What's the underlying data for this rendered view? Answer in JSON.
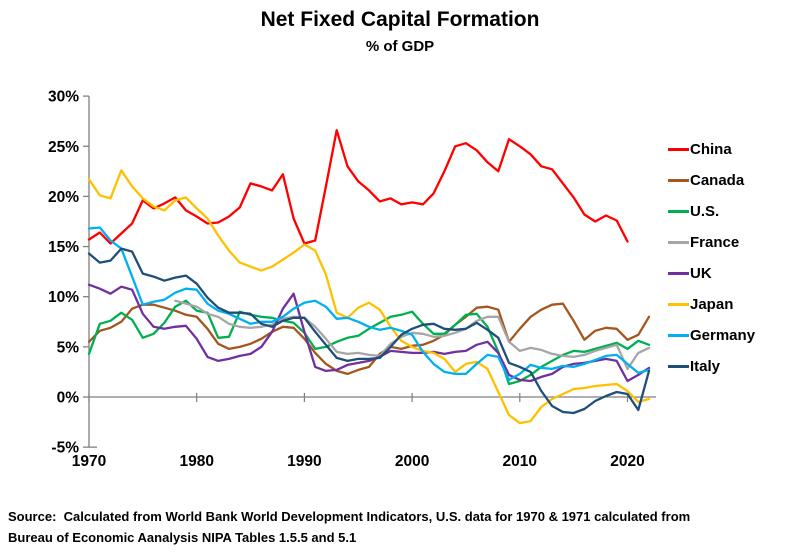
{
  "title": "Net Fixed Capital Formation",
  "subtitle": "% of GDP",
  "source": {
    "line1": "Source:  Calculated from World Bank World Development Indicators, U.S. data for 1970 & 1971 calculated from",
    "line2": "Bureau of Economic Aanalysis NIPA Tables 1.5.5 and 5.1"
  },
  "colors": {
    "axis": "#808080",
    "zero_line": "#7f7f7f",
    "text": "#000000"
  },
  "chart_data": {
    "type": "line",
    "title": "Net Fixed Capital Formation",
    "subtitle": "% of GDP",
    "xlabel": "",
    "ylabel": "% of GDP",
    "x_start_year": 1970,
    "x_end_year": 2022,
    "x_ticks": [
      1970,
      1980,
      1990,
      2000,
      2010,
      2020
    ],
    "y_ticks": [
      30,
      25,
      20,
      15,
      10,
      5,
      0,
      -5
    ],
    "y_tick_suffix": "%",
    "ylim": [
      -5,
      30
    ],
    "grid": "zero-line-only",
    "legend_position": "right",
    "series": [
      {
        "name": "China",
        "color": "#FF0000",
        "values": [
          15.7,
          16.4,
          15.3,
          16.3,
          17.3,
          19.6,
          18.8,
          19.3,
          19.9,
          18.6,
          18.0,
          17.3,
          17.4,
          18.0,
          18.9,
          21.3,
          21.0,
          20.6,
          22.2,
          17.8,
          15.3,
          15.6,
          21.0,
          26.6,
          23.0,
          21.5,
          20.6,
          19.5,
          19.8,
          19.2,
          19.4,
          19.2,
          20.3,
          22.5,
          25.0,
          25.3,
          24.6,
          23.4,
          22.5,
          25.7,
          25.0,
          24.2,
          23.0,
          22.7,
          21.3,
          19.9,
          18.2,
          17.5,
          18.1,
          17.6,
          15.5,
          null,
          null
        ]
      },
      {
        "name": "Canada",
        "color": "#A4561E",
        "values": [
          5.5,
          6.6,
          6.9,
          7.5,
          8.8,
          9.2,
          9.2,
          8.9,
          8.6,
          8.2,
          8.0,
          6.8,
          5.3,
          4.8,
          5.0,
          5.3,
          5.8,
          6.5,
          7.0,
          6.9,
          5.8,
          4.4,
          3.3,
          2.6,
          2.3,
          2.7,
          3.0,
          4.3,
          5.0,
          4.8,
          5.1,
          5.2,
          5.6,
          6.2,
          7.2,
          8.0,
          8.9,
          9.0,
          8.7,
          5.5,
          6.8,
          8.0,
          8.7,
          9.2,
          9.3,
          7.6,
          5.7,
          6.6,
          6.9,
          6.8,
          5.7,
          6.2,
          8.0
        ]
      },
      {
        "name": "U.S.",
        "color": "#00B050",
        "values": [
          4.3,
          7.3,
          7.6,
          8.4,
          7.7,
          5.9,
          6.3,
          7.4,
          9.0,
          9.6,
          8.6,
          8.4,
          5.9,
          6.0,
          8.5,
          8.2,
          8.0,
          7.9,
          7.6,
          7.4,
          6.4,
          4.8,
          5.0,
          5.5,
          5.9,
          6.1,
          6.8,
          7.4,
          8.0,
          8.2,
          8.5,
          7.3,
          6.3,
          6.3,
          7.2,
          8.2,
          8.3,
          7.0,
          4.5,
          1.3,
          1.6,
          2.2,
          3.0,
          3.6,
          4.2,
          4.6,
          4.5,
          4.8,
          5.1,
          5.4,
          4.8,
          5.6,
          5.2
        ]
      },
      {
        "name": "France",
        "color": "#A6A6A6",
        "values": [
          null,
          null,
          null,
          null,
          null,
          null,
          null,
          null,
          9.6,
          9.3,
          9.0,
          8.3,
          8.0,
          7.3,
          7.0,
          6.9,
          7.0,
          7.2,
          7.8,
          8.0,
          7.9,
          7.0,
          5.8,
          4.5,
          4.3,
          4.4,
          4.2,
          4.1,
          5.3,
          6.0,
          6.4,
          6.3,
          6.0,
          6.1,
          6.4,
          6.8,
          7.6,
          8.0,
          8.0,
          5.5,
          4.6,
          4.9,
          4.7,
          4.3,
          4.1,
          4.0,
          4.2,
          4.6,
          4.9,
          5.2,
          2.8,
          4.4,
          4.9
        ]
      },
      {
        "name": "UK",
        "color": "#7030A0",
        "values": [
          11.2,
          10.8,
          10.3,
          11.0,
          10.7,
          8.3,
          7.0,
          6.8,
          7.0,
          7.1,
          5.8,
          4.0,
          3.6,
          3.8,
          4.1,
          4.3,
          5.0,
          6.5,
          8.8,
          10.3,
          6.5,
          3.0,
          2.6,
          2.7,
          3.2,
          3.4,
          3.6,
          4.0,
          4.6,
          4.5,
          4.4,
          4.4,
          4.5,
          4.3,
          4.5,
          4.6,
          5.2,
          5.5,
          4.4,
          2.2,
          1.7,
          1.6,
          2.0,
          2.3,
          3.0,
          3.3,
          3.4,
          3.6,
          3.8,
          3.6,
          1.6,
          2.2,
          2.9
        ]
      },
      {
        "name": "Japan",
        "color": "#FFC000",
        "values": [
          21.7,
          20.1,
          19.8,
          22.6,
          21.0,
          19.8,
          19.0,
          18.6,
          19.6,
          19.9,
          18.8,
          17.8,
          16.1,
          14.6,
          13.4,
          13.0,
          12.6,
          13.0,
          13.7,
          14.4,
          15.2,
          14.6,
          12.2,
          8.4,
          7.9,
          8.9,
          9.4,
          8.7,
          7.0,
          5.6,
          5.0,
          4.6,
          4.4,
          3.8,
          2.5,
          3.3,
          3.5,
          2.8,
          0.5,
          -1.8,
          -2.6,
          -2.4,
          -1.0,
          -0.2,
          0.3,
          0.8,
          0.9,
          1.1,
          1.2,
          1.3,
          0.6,
          -0.5,
          -0.2
        ]
      },
      {
        "name": "Germany",
        "color": "#00B0F0",
        "values": [
          16.8,
          16.9,
          15.6,
          14.8,
          12.0,
          9.2,
          9.5,
          9.7,
          10.4,
          10.8,
          10.7,
          9.3,
          8.6,
          8.3,
          7.8,
          7.3,
          7.5,
          7.5,
          8.0,
          8.8,
          9.4,
          9.6,
          9.0,
          7.8,
          7.9,
          7.5,
          7.0,
          6.7,
          6.9,
          6.6,
          6.2,
          4.5,
          3.3,
          2.5,
          2.3,
          2.3,
          3.3,
          4.2,
          4.0,
          1.7,
          2.3,
          3.2,
          2.9,
          2.8,
          3.1,
          3.0,
          3.3,
          3.7,
          4.1,
          4.2,
          3.3,
          2.4,
          2.7
        ]
      },
      {
        "name": "Italy",
        "color": "#1F4E79",
        "values": [
          14.3,
          13.4,
          13.6,
          14.8,
          14.5,
          12.3,
          12.0,
          11.6,
          11.9,
          12.1,
          11.3,
          9.9,
          8.9,
          8.4,
          8.4,
          8.3,
          7.3,
          7.0,
          7.6,
          7.9,
          7.9,
          6.5,
          5.2,
          3.9,
          3.6,
          3.8,
          3.8,
          3.9,
          5.0,
          6.2,
          6.8,
          7.2,
          7.3,
          6.8,
          6.7,
          6.8,
          7.4,
          6.7,
          5.9,
          3.4,
          3.0,
          2.5,
          0.6,
          -0.9,
          -1.5,
          -1.6,
          -1.2,
          -0.4,
          0.1,
          0.5,
          0.3,
          -1.3,
          2.6
        ]
      }
    ]
  }
}
